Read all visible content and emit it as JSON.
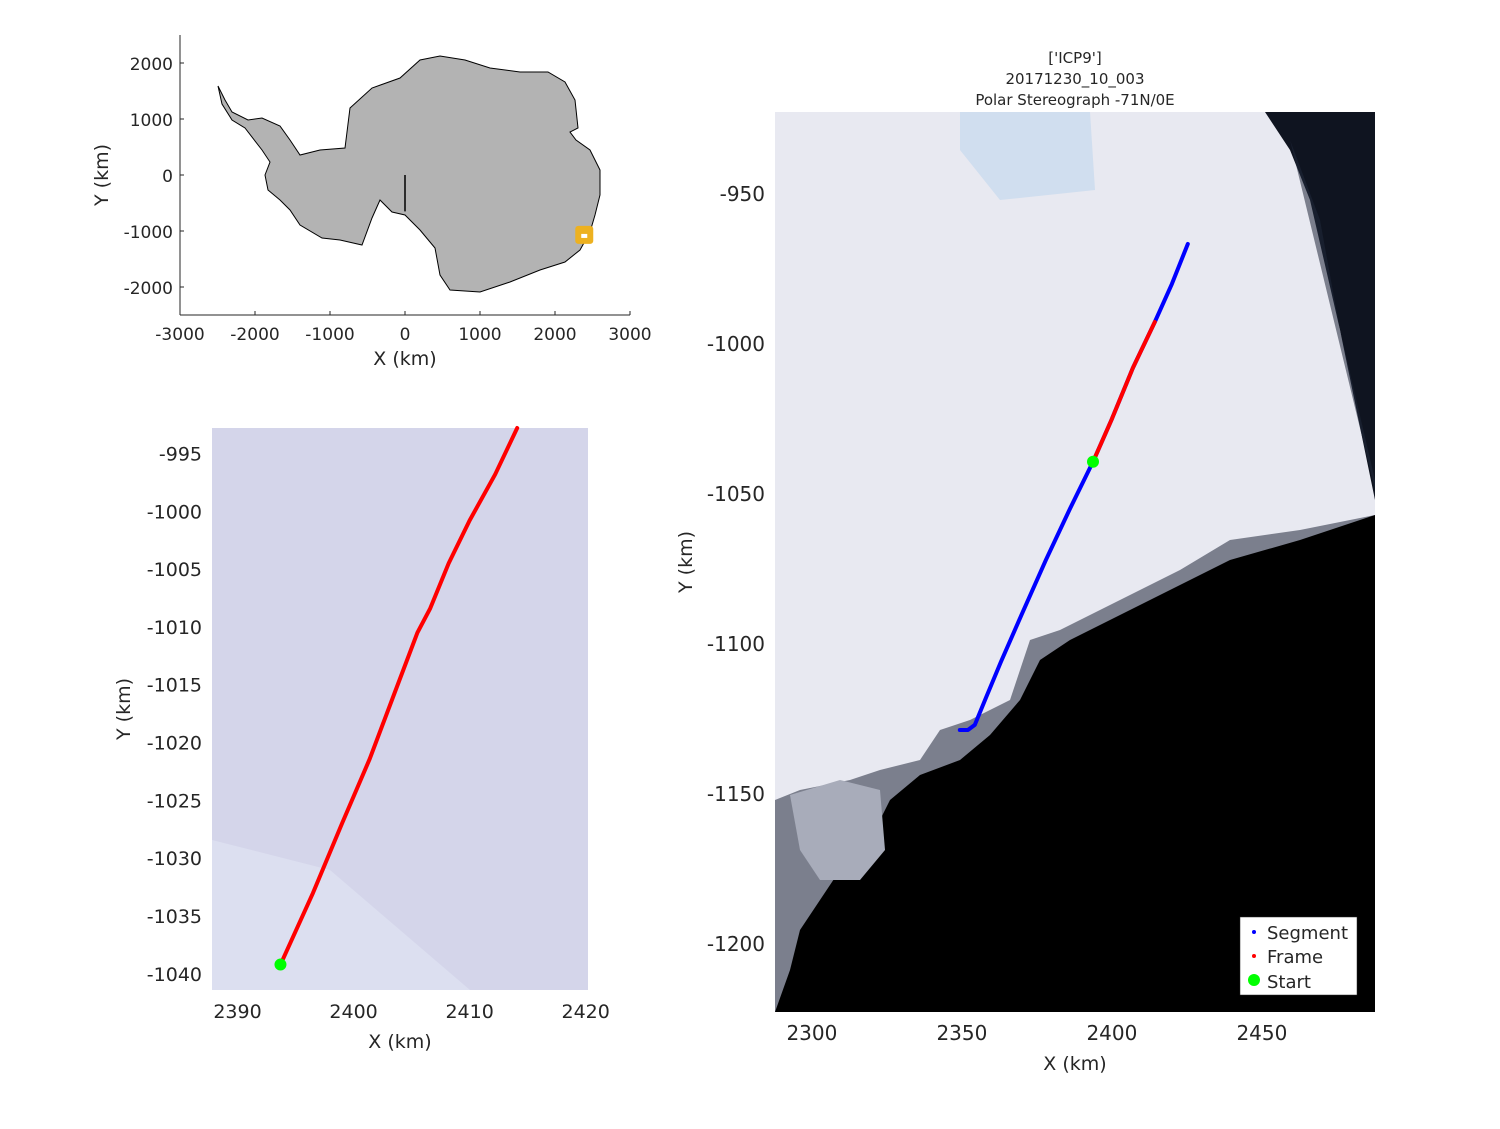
{
  "chart_data": [
    {
      "id": "overview",
      "type": "line",
      "xlabel": "X (km)",
      "ylabel": "Y (km)",
      "xlim": [
        -3000,
        3000
      ],
      "ylim": [
        -2500,
        2500
      ],
      "xticks": [
        -3000,
        -2000,
        -1000,
        0,
        1000,
        2000,
        3000
      ],
      "yticks": [
        2000,
        1000,
        0,
        -1000,
        -2000
      ],
      "meridian_line": {
        "x": [
          0,
          0
        ],
        "y": [
          0,
          -650
        ]
      },
      "location_marker": {
        "x": 2390,
        "y": -1070,
        "color": "#edb120"
      },
      "land_color": "#b3b3b3"
    },
    {
      "id": "frame-zoom",
      "type": "line",
      "xlabel": "X (km)",
      "ylabel": "Y (km)",
      "xlim": [
        2387.8,
        2420.2
      ],
      "ylim": [
        -1041.4,
        -992.8
      ],
      "xticks": [
        2390,
        2400,
        2410,
        2420
      ],
      "yticks": [
        -995,
        -1000,
        -1005,
        -1010,
        -1015,
        -1020,
        -1025,
        -1030,
        -1035,
        -1040
      ],
      "series": [
        {
          "name": "Frame",
          "color": "#ff0000",
          "x": [
            2393.7,
            2396.5,
            2399.0,
            2401.4,
            2403.5,
            2405.5,
            2406.6,
            2408.2,
            2410.0,
            2412.2,
            2414.1
          ],
          "y": [
            -1039.2,
            -1033.0,
            -1027.0,
            -1021.4,
            -1015.8,
            -1010.5,
            -1008.4,
            -1004.5,
            -1000.8,
            -996.8,
            -992.8
          ]
        },
        {
          "name": "Start",
          "color": "#00ff00",
          "x": [
            2393.7
          ],
          "y": [
            -1039.2
          ]
        }
      ]
    },
    {
      "id": "segment-map",
      "type": "line",
      "title": [
        "['ICP9']",
        "20171230_10_003",
        "Polar Stereograph -71N/0E"
      ],
      "xlabel": "X (km)",
      "ylabel": "Y (km)",
      "xlim": [
        2287.7,
        2487.7
      ],
      "ylim": [
        -1222.7,
        -922.7
      ],
      "xticks": [
        2300,
        2350,
        2400,
        2450
      ],
      "yticks": [
        -950,
        -1000,
        -1050,
        -1100,
        -1150,
        -1200
      ],
      "legend": {
        "position": "bottom-right",
        "entries": [
          "Segment",
          "Frame",
          "Start"
        ]
      },
      "series": [
        {
          "name": "Segment",
          "color": "#0000ff",
          "x": [
            2349.3,
            2352.0,
            2354.3,
            2358.0,
            2363.0,
            2370.0,
            2378.0,
            2386.0,
            2393.7,
            2400.0,
            2407.0,
            2414.3,
            2420.0,
            2425.3
          ],
          "y": [
            -1128.7,
            -1128.7,
            -1127.0,
            -1118.0,
            -1106.0,
            -1090.0,
            -1072.0,
            -1055.0,
            -1039.3,
            -1025.0,
            -1008.0,
            -992.7,
            -980.0,
            -966.7
          ]
        },
        {
          "name": "Frame",
          "color": "#ff0000",
          "x": [
            2393.7,
            2400.0,
            2407.0,
            2414.3
          ],
          "y": [
            -1039.3,
            -1025.0,
            -1008.0,
            -992.7
          ]
        },
        {
          "name": "Start",
          "color": "#00ff00",
          "x": [
            2393.7
          ],
          "y": [
            -1039.3
          ]
        }
      ]
    }
  ]
}
